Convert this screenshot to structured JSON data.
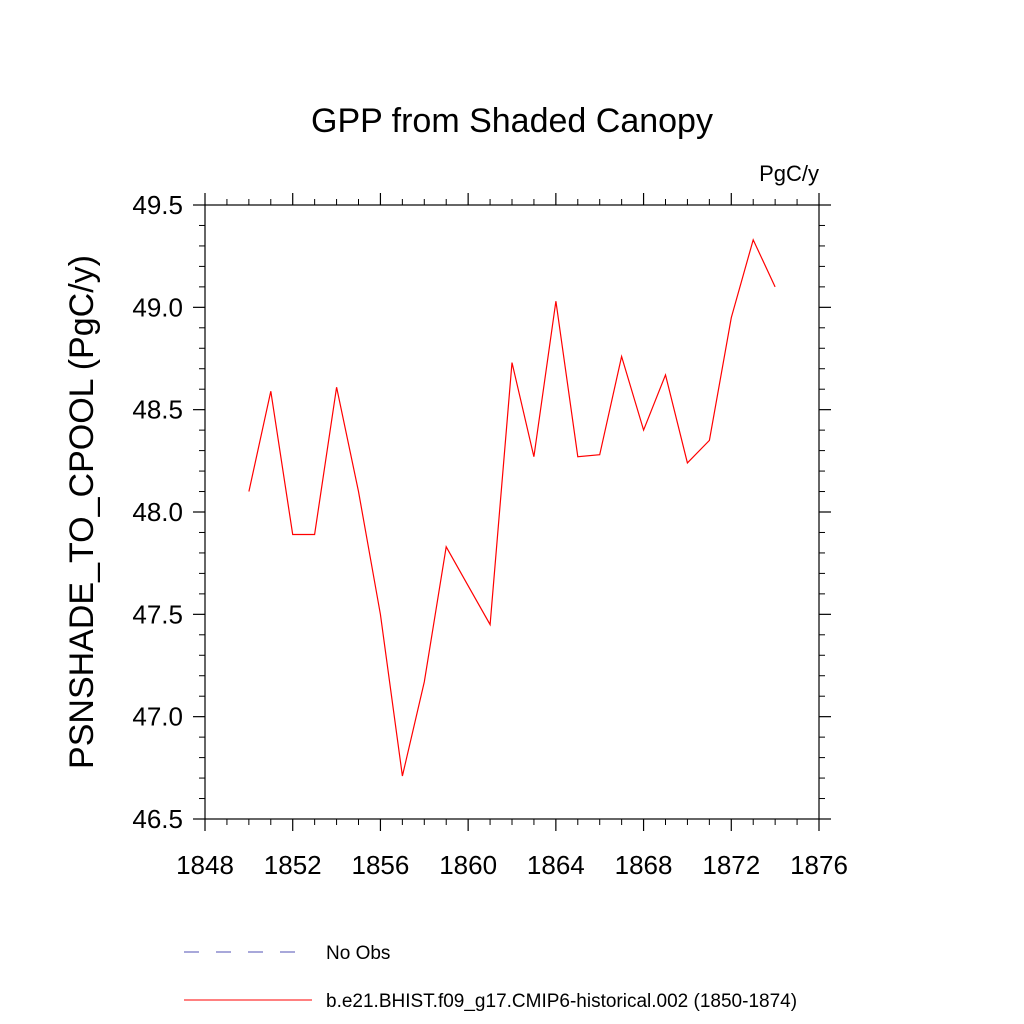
{
  "chart_data": {
    "type": "line",
    "title": "GPP from Shaded Canopy",
    "units_label": "PgC/y",
    "ylabel": "PSNSHADE_TO_CPOOL  (PgC/y)",
    "xlabel": "",
    "xlim": [
      1848,
      1876
    ],
    "ylim": [
      46.5,
      49.5
    ],
    "x_ticks": [
      1848,
      1852,
      1856,
      1860,
      1864,
      1868,
      1872,
      1876
    ],
    "y_ticks": [
      "46.5",
      "47.0",
      "47.5",
      "48.0",
      "48.5",
      "49.0",
      "49.5"
    ],
    "grid": false,
    "legend_position": "bottom",
    "series": [
      {
        "name": "b.e21.BHIST.f09_g17.CMIP6-historical.002 (1850-1874)",
        "color": "#ff0000",
        "style": "solid",
        "x": [
          1850,
          1851,
          1852,
          1853,
          1854,
          1855,
          1856,
          1857,
          1858,
          1859,
          1860,
          1861,
          1862,
          1863,
          1864,
          1865,
          1866,
          1867,
          1868,
          1869,
          1870,
          1871,
          1872,
          1873,
          1874
        ],
        "y": [
          48.1,
          48.59,
          47.89,
          47.89,
          48.61,
          48.1,
          47.5,
          46.71,
          47.17,
          47.83,
          47.64,
          47.45,
          48.73,
          48.27,
          49.03,
          48.27,
          48.28,
          48.76,
          48.4,
          48.67,
          48.24,
          48.35,
          48.95,
          49.33,
          49.1
        ]
      }
    ],
    "legend": [
      {
        "label": "No Obs",
        "color": "#5050b4",
        "style": "dashed"
      },
      {
        "label": "b.e21.BHIST.f09_g17.CMIP6-historical.002 (1850-1874)",
        "color": "#ff0000",
        "style": "solid"
      }
    ]
  }
}
